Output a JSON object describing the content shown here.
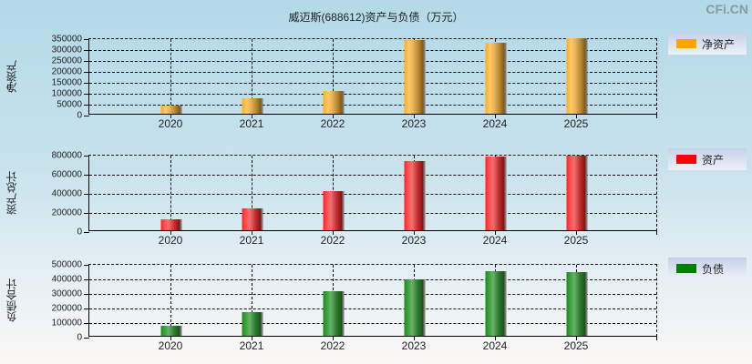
{
  "title": "威迈斯(688612)资产与负债（万元）",
  "logo": "CFi.CN",
  "chart_data": [
    {
      "type": "bar",
      "title": "威迈斯(688612)资产与负债（万元）",
      "ylabel": "净资产",
      "xlabel": "",
      "categories": [
        "2020",
        "2021",
        "2022",
        "2023",
        "2024",
        "2025"
      ],
      "series": [
        {
          "name": "净资产",
          "color": "#ffa500",
          "values": [
            38000,
            71000,
            104000,
            338000,
            325000,
            346000
          ]
        }
      ],
      "ylim": [
        0,
        350000
      ],
      "yticks": [
        "350000",
        "300000",
        "250000",
        "200000",
        "150000",
        "100000",
        "50000",
        "0"
      ],
      "grid": true,
      "legend_position": "right"
    },
    {
      "type": "bar",
      "ylabel": "资产总计",
      "xlabel": "",
      "categories": [
        "2020",
        "2021",
        "2022",
        "2023",
        "2024",
        "2025"
      ],
      "series": [
        {
          "name": "资产",
          "color": "#ff0000",
          "values": [
            114000,
            229000,
            410000,
            724000,
            771000,
            781000
          ]
        }
      ],
      "ylim": [
        0,
        800000
      ],
      "yticks": [
        "800000",
        "600000",
        "400000",
        "200000",
        "0"
      ],
      "grid": true,
      "legend_position": "right"
    },
    {
      "type": "bar",
      "ylabel": "负债合计",
      "xlabel": "",
      "categories": [
        "2020",
        "2021",
        "2022",
        "2023",
        "2024",
        "2025"
      ],
      "series": [
        {
          "name": "负债",
          "color": "#008000",
          "values": [
            69000,
            163000,
            306000,
            388000,
            444000,
            437000
          ]
        }
      ],
      "ylim": [
        0,
        500000
      ],
      "yticks": [
        "500000",
        "400000",
        "300000",
        "200000",
        "100000",
        "0"
      ],
      "grid": true,
      "legend_position": "right"
    }
  ]
}
